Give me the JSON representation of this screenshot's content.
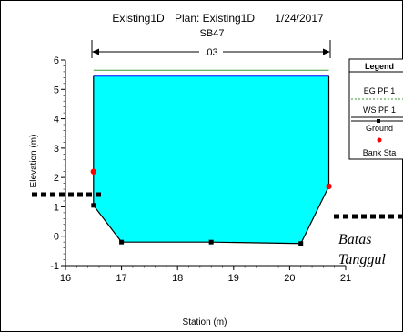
{
  "header": {
    "plan_name": "Existing1D",
    "plan_label": "Plan: Existing1D",
    "date": "1/24/2017",
    "section_id": "SB47",
    "manning_label": ".03"
  },
  "legend": {
    "title": "Legend",
    "items": [
      {
        "label": "EG PF 1",
        "color": "#3a9a3a",
        "style": "dashed-line"
      },
      {
        "label": "WS PF 1",
        "color": "#00ffff",
        "style": "line"
      },
      {
        "label": "Ground",
        "color": "#000000",
        "style": "line-square-marker"
      },
      {
        "label": "Bank Sta",
        "color": "#ff0000",
        "style": "circle-marker"
      }
    ]
  },
  "annotation": {
    "line1": "Batas",
    "line2": "Tanggul"
  },
  "chart_data": {
    "type": "line",
    "title": "",
    "xlabel": "Station (m)",
    "ylabel": "Elevation (m)",
    "xlim": [
      16,
      21
    ],
    "ylim": [
      -1,
      6
    ],
    "x_ticks": [
      16,
      17,
      18,
      19,
      20,
      21
    ],
    "y_ticks": [
      -1,
      0,
      1,
      2,
      3,
      4,
      5,
      6
    ],
    "grid": false,
    "legend_position": "right",
    "series": [
      {
        "name": "Ground",
        "x": [
          16.5,
          16.5,
          17.0,
          18.6,
          20.2,
          20.7
        ],
        "y": [
          1.7,
          1.05,
          -0.2,
          -0.2,
          -0.25,
          1.7
        ]
      },
      {
        "name": "EG PF 1",
        "x": [
          16.5,
          20.7
        ],
        "y": [
          5.65,
          5.65
        ]
      },
      {
        "name": "WS PF 1",
        "x": [
          16.5,
          20.7
        ],
        "y": [
          5.45,
          5.45
        ]
      },
      {
        "name": "Bank Sta",
        "x": [
          16.5,
          20.7
        ],
        "y": [
          2.2,
          1.7
        ]
      }
    ]
  }
}
